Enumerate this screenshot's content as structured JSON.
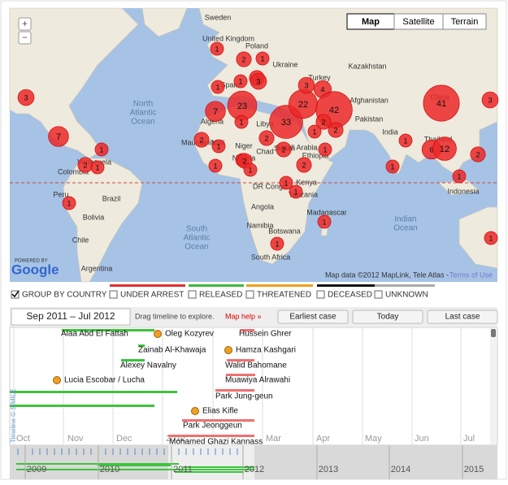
{
  "map": {
    "type_buttons": [
      "Map",
      "Satellite",
      "Terrain"
    ],
    "zoom": [
      "+",
      "−"
    ],
    "places": [
      "Sweden",
      "United Kingdom",
      "Poland",
      "Ukraine",
      "Spain",
      "Turkey",
      "Kazakhstan",
      "Afghanistan",
      "Pakistan",
      "India",
      "China",
      "Thailand",
      "Indonesia",
      "Libya",
      "Algeria",
      "Mauritania",
      "Mali",
      "Niger",
      "Chad",
      "Sudan",
      "Nigeria",
      "Ethiopia",
      "Kenya",
      "DR Congo",
      "Tanzania",
      "Angola",
      "Namibia",
      "Madagascar",
      "Botswana",
      "South Africa",
      "Saudi Arabia",
      "Colombia",
      "Venezuela",
      "Brazil",
      "Bolivia",
      "Peru",
      "Chile",
      "Argentina"
    ],
    "oceans": [
      [
        "North",
        "Atlantic",
        "Ocean"
      ],
      [
        "South",
        "Atlantic",
        "Ocean"
      ],
      [
        "Indian",
        "Ocean"
      ]
    ],
    "clusters": [
      3,
      7,
      2,
      1,
      1,
      1,
      2,
      1,
      1,
      2,
      3,
      1,
      1,
      7,
      23,
      33,
      22,
      4,
      42,
      2,
      2,
      1,
      3,
      41,
      3,
      1,
      1,
      6,
      12,
      2,
      1,
      2,
      1,
      1,
      2,
      1,
      1,
      2,
      1,
      2,
      2,
      1,
      1,
      1,
      1,
      1,
      1
    ],
    "powered_by": "POWERED BY",
    "logo": "Google",
    "attribution": "Map data ©2012 MapLink, Tele Atlas - ",
    "terms": "Terms of Use"
  },
  "filters": {
    "group": "GROUP BY COUNTRY",
    "statuses": [
      "UNDER ARREST",
      "RELEASED",
      "THREATENED",
      "DECEASED",
      "UNKNOWN"
    ]
  },
  "timeline": {
    "range": "Sep 2011 – Jul 2012",
    "hint": "Drag timeline to explore.",
    "help": "Map help »",
    "buttons": [
      "Earliest case",
      "Today",
      "Last case"
    ],
    "cases": [
      "Alaa Abd El Fattah",
      "Oleg Kozyrev",
      "Hussein Ghrer",
      "Zainab Al-Khawaja",
      "Hamza Kashgari",
      "Alexey Navalny",
      "Walid Bahomane",
      "Lucia Escobar / Lucha",
      "Muawiya Alrawahi",
      "Park Jung-geun",
      "Elias Kifle",
      "Park Jeonggeun",
      "Mohamed Ghazi Kannass"
    ],
    "months": [
      "Oct",
      "Nov",
      "Dec",
      "2012",
      "Mar",
      "Apr",
      "May",
      "Jun",
      "Jul"
    ],
    "years": [
      "2009",
      "2010",
      "2011",
      "2012",
      "2013",
      "2014",
      "2015"
    ],
    "credit": "Timeline © SIMILE"
  }
}
